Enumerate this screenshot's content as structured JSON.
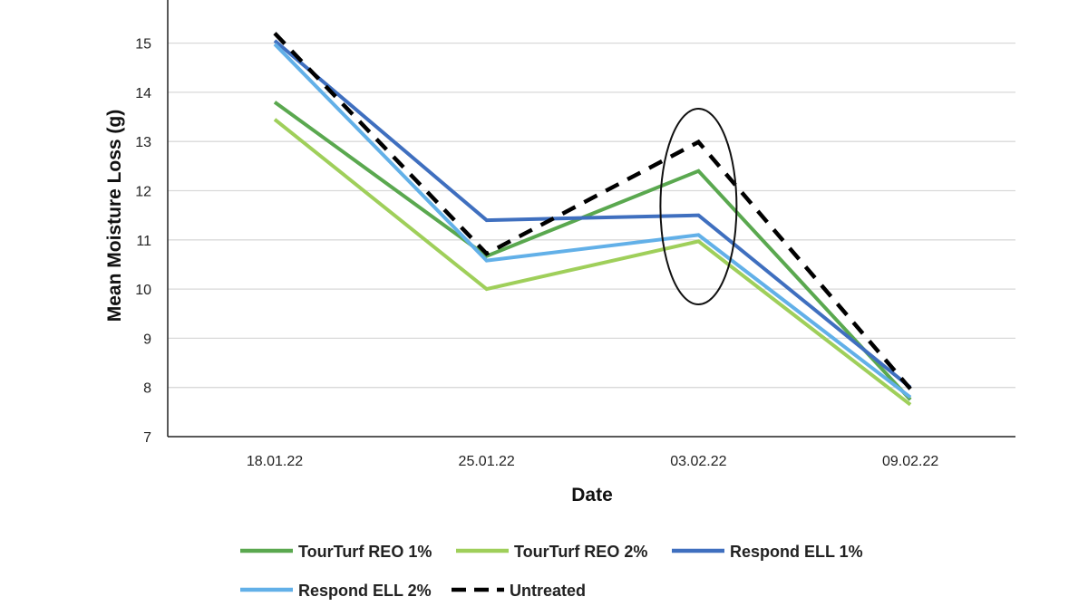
{
  "chart_data": {
    "type": "line",
    "title": "",
    "xlabel": "Date",
    "ylabel": "Mean Moisture Loss (g)",
    "ylim": [
      7,
      16
    ],
    "yticks": [
      7,
      8,
      9,
      10,
      11,
      12,
      13,
      14,
      15
    ],
    "grid": true,
    "legend_placement": "bottom",
    "categories": [
      "18.01.22",
      "25.01.22",
      "03.02.22",
      "09.02.22"
    ],
    "series": [
      {
        "name": "TourTurf REO 1%",
        "color": "#5aa84f",
        "dashed": false,
        "values": [
          13.8,
          10.67,
          12.4,
          7.75
        ]
      },
      {
        "name": "TourTurf REO 2%",
        "color": "#9fcf5a",
        "dashed": false,
        "values": [
          13.45,
          10.0,
          10.97,
          7.65
        ]
      },
      {
        "name": "Respond ELL 1%",
        "color": "#3f6fbf",
        "dashed": false,
        "values": [
          15.05,
          11.4,
          11.5,
          8.0
        ]
      },
      {
        "name": "Respond ELL 2%",
        "color": "#62b0e8",
        "dashed": false,
        "values": [
          14.98,
          10.58,
          11.1,
          7.8
        ]
      },
      {
        "name": "Untreated",
        "color": "#000000",
        "dashed": true,
        "values": [
          15.2,
          10.72,
          12.99,
          7.97
        ]
      }
    ],
    "annotation": {
      "shape": "ellipse",
      "around_category": "03.02.22"
    }
  }
}
